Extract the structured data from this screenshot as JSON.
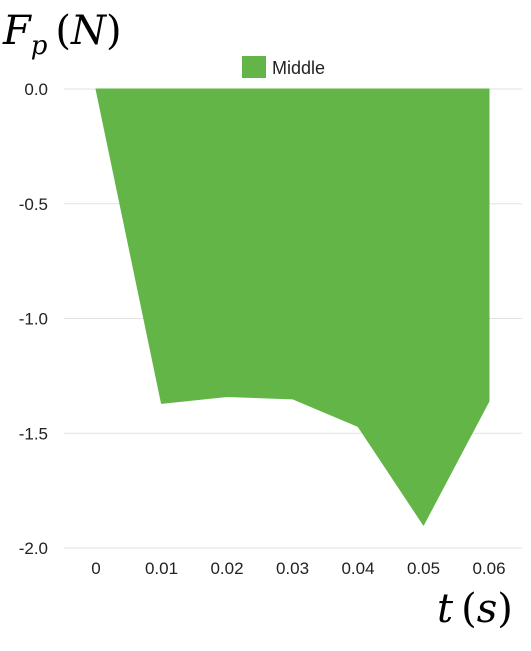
{
  "chart_data": {
    "type": "area",
    "ylabel_main": "F",
    "ylabel_sub": "p",
    "ylabel_unit": "N",
    "xlabel_main": "t",
    "xlabel_unit": "s",
    "x": [
      0,
      0.01,
      0.02,
      0.03,
      0.04,
      0.05,
      0.06
    ],
    "x_tick_labels": [
      "0",
      "0.01",
      "0.02",
      "0.03",
      "0.04",
      "0.05",
      "0.06"
    ],
    "y_ticks": [
      0,
      -0.5,
      -1,
      -1.5,
      -2
    ],
    "y_tick_labels": [
      "0.0",
      "-0.5",
      "-1.0",
      "-1.5",
      "-2.0"
    ],
    "ylim": [
      -2,
      0
    ],
    "grid": true,
    "legend_position": "top-center",
    "series": [
      {
        "name": "Middle",
        "color": "#62b546",
        "values": [
          0,
          -1.37,
          -1.34,
          -1.35,
          -1.47,
          -1.9,
          -1.36
        ]
      }
    ]
  }
}
